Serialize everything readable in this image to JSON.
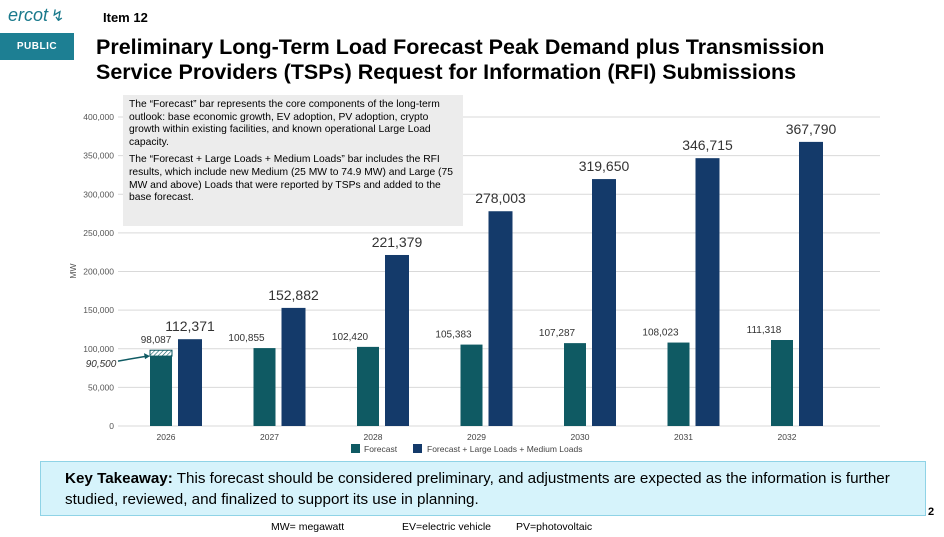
{
  "header": {
    "logo": "ercot",
    "item": "Item  12",
    "badge": "PUBLIC",
    "title_line1": "Preliminary Long-Term Load Forecast Peak Demand plus Transmission",
    "title_line2": "Service Providers (TSPs) Request for Information (RFI) Submissions"
  },
  "note": {
    "p1": "The “Forecast” bar represents the core components of the long-term outlook: base economic growth, EV adoption, PV adoption, crypto growth within existing facilities, and known operational Large Load capacity.",
    "p2": "The “Forecast + Large Loads + Medium Loads” bar includes the RFI results, which include new Medium (25 MW to 74.9 MW) and Large (75 MW and above) Loads that were reported by TSPs and added to the base forecast."
  },
  "chart_data": {
    "type": "bar",
    "categories": [
      "2026",
      "2027",
      "2028",
      "2029",
      "2030",
      "2031",
      "2032"
    ],
    "series": [
      {
        "name": "Forecast",
        "color": "#0f5a63",
        "values": [
          98087,
          100855,
          102420,
          105383,
          107287,
          108023,
          111318
        ]
      },
      {
        "name": "Forecast + Large Loads + Medium Loads",
        "color": "#143a6a",
        "values": [
          112371,
          152882,
          221379,
          278003,
          319650,
          346715,
          367790
        ]
      }
    ],
    "annotation": {
      "category": "2026",
      "value": 90500,
      "label": "90,500"
    },
    "ylabel": "MW",
    "ylim": [
      0,
      400000
    ],
    "yticks": [
      0,
      50000,
      100000,
      150000,
      200000,
      250000,
      300000,
      350000,
      400000
    ],
    "ytick_labels": [
      "0",
      "50,000",
      "100,000",
      "150,000",
      "200,000",
      "250,000",
      "300,000",
      "350,000",
      "400,000"
    ],
    "grid": true,
    "legend": "bottom"
  },
  "takeaway": {
    "label": "Key Takeaway:",
    "text": " This forecast should be considered preliminary, and adjustments are expected as the information is further studied, reviewed, and finalized to support its use in planning."
  },
  "footer": {
    "mw": "MW= megawatt",
    "ev": "EV=electric vehicle",
    "pv": "PV=photovoltaic",
    "page": "2"
  }
}
